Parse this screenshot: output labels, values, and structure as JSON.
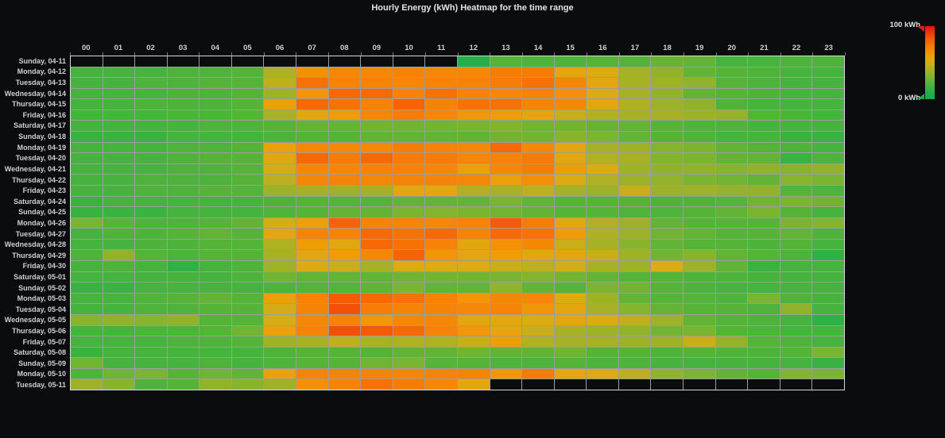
{
  "panel": {
    "background": "#0b0c0e",
    "grid_line_color": "rgba(255,255,255,0.6)",
    "text_color": "#cfd0d2"
  },
  "legend": {
    "max_label": "100 kWh",
    "min_label": "0 kWh",
    "max_marker_color": "#ef1d10",
    "min_marker_color": "#1cab45"
  },
  "chart_data": {
    "type": "heatmap",
    "title": "Hourly Energy (kWh) Heatmap for the time range",
    "value_unit": "kWh",
    "scale_min": 0,
    "scale_max": 100,
    "legend_position": "top-right",
    "no_data_color": "#0b0c0e",
    "colorstops": [
      [
        0,
        "#16a94f"
      ],
      [
        12,
        "#2eb145"
      ],
      [
        22,
        "#55b438"
      ],
      [
        32,
        "#83b42e"
      ],
      [
        42,
        "#b0b023"
      ],
      [
        52,
        "#daac12"
      ],
      [
        60,
        "#f09c07"
      ],
      [
        70,
        "#f58306"
      ],
      [
        80,
        "#f56306"
      ],
      [
        90,
        "#f03c08"
      ],
      [
        100,
        "#e51410"
      ]
    ],
    "x_labels": [
      "00",
      "01",
      "02",
      "03",
      "04",
      "05",
      "06",
      "07",
      "08",
      "09",
      "10",
      "11",
      "12",
      "13",
      "14",
      "15",
      "16",
      "17",
      "18",
      "19",
      "20",
      "21",
      "22",
      "23"
    ],
    "y_labels": [
      "Sunday, 04-11",
      "Monday, 04-12",
      "Tuesday, 04-13",
      "Wednesday, 04-14",
      "Thursday, 04-15",
      "Friday, 04-16",
      "Saturday, 04-17",
      "Sunday, 04-18",
      "Monday, 04-19",
      "Tuesday, 04-20",
      "Wednesday, 04-21",
      "Thursday, 04-22",
      "Friday, 04-23",
      "Saturday, 04-24",
      "Sunday, 04-25",
      "Monday, 04-26",
      "Tuesday, 04-27",
      "Wednesday, 04-28",
      "Thursday, 04-29",
      "Friday, 04-30",
      "Saturday, 05-01",
      "Sunday, 05-02",
      "Monday, 05-03",
      "Tuesday, 05-04",
      "Wednesday, 05-05",
      "Thursday, 05-06",
      "Friday, 05-07",
      "Saturday, 05-08",
      "Sunday, 05-09",
      "Monday, 05-10",
      "Tuesday, 05-11"
    ],
    "values": [
      [
        null,
        null,
        null,
        null,
        null,
        null,
        null,
        null,
        null,
        null,
        null,
        null,
        8,
        22,
        20,
        20,
        22,
        22,
        26,
        25,
        18,
        18,
        20,
        20
      ],
      [
        18,
        18,
        18,
        20,
        20,
        22,
        42,
        65,
        68,
        68,
        70,
        68,
        68,
        72,
        72,
        55,
        52,
        40,
        35,
        25,
        22,
        20,
        18,
        18
      ],
      [
        18,
        18,
        20,
        20,
        22,
        22,
        45,
        75,
        70,
        70,
        68,
        70,
        70,
        72,
        75,
        68,
        55,
        40,
        38,
        35,
        22,
        20,
        18,
        18
      ],
      [
        18,
        18,
        18,
        20,
        20,
        22,
        38,
        62,
        78,
        78,
        70,
        75,
        70,
        68,
        70,
        65,
        52,
        40,
        35,
        25,
        22,
        20,
        18,
        18
      ],
      [
        18,
        18,
        20,
        20,
        20,
        22,
        58,
        78,
        75,
        70,
        80,
        70,
        75,
        75,
        70,
        68,
        55,
        42,
        38,
        35,
        20,
        18,
        18,
        18
      ],
      [
        18,
        18,
        18,
        20,
        20,
        22,
        40,
        55,
        60,
        68,
        72,
        68,
        62,
        60,
        55,
        48,
        42,
        40,
        40,
        38,
        36,
        22,
        20,
        18
      ],
      [
        18,
        18,
        18,
        18,
        20,
        20,
        22,
        25,
        25,
        28,
        28,
        28,
        30,
        32,
        28,
        28,
        26,
        25,
        22,
        20,
        20,
        18,
        18,
        18
      ],
      [
        15,
        15,
        15,
        18,
        18,
        18,
        20,
        22,
        22,
        25,
        25,
        25,
        25,
        28,
        28,
        33,
        30,
        25,
        22,
        20,
        18,
        18,
        15,
        15
      ],
      [
        18,
        18,
        18,
        20,
        20,
        22,
        58,
        68,
        68,
        68,
        72,
        70,
        68,
        78,
        68,
        55,
        40,
        38,
        32,
        30,
        25,
        22,
        20,
        18
      ],
      [
        18,
        18,
        18,
        20,
        22,
        22,
        55,
        78,
        72,
        78,
        72,
        72,
        68,
        70,
        72,
        55,
        42,
        40,
        32,
        30,
        25,
        25,
        15,
        20
      ],
      [
        18,
        18,
        18,
        20,
        20,
        22,
        50,
        68,
        68,
        70,
        70,
        68,
        58,
        68,
        72,
        60,
        52,
        38,
        35,
        35,
        33,
        35,
        33,
        35
      ],
      [
        18,
        18,
        20,
        20,
        20,
        22,
        45,
        68,
        70,
        68,
        70,
        70,
        68,
        58,
        65,
        52,
        42,
        38,
        35,
        30,
        28,
        25,
        33,
        30
      ],
      [
        18,
        18,
        20,
        20,
        22,
        22,
        38,
        40,
        38,
        40,
        55,
        55,
        42,
        40,
        45,
        40,
        38,
        48,
        38,
        38,
        36,
        35,
        22,
        20
      ],
      [
        15,
        18,
        18,
        18,
        18,
        18,
        20,
        22,
        22,
        22,
        25,
        25,
        25,
        30,
        25,
        22,
        22,
        22,
        20,
        20,
        22,
        28,
        30,
        28
      ],
      [
        15,
        15,
        15,
        18,
        18,
        18,
        20,
        22,
        25,
        25,
        30,
        32,
        30,
        28,
        25,
        22,
        22,
        20,
        20,
        22,
        25,
        30,
        22,
        18
      ],
      [
        30,
        22,
        20,
        20,
        22,
        25,
        50,
        58,
        80,
        70,
        70,
        68,
        70,
        82,
        72,
        55,
        42,
        38,
        25,
        22,
        22,
        22,
        30,
        33
      ],
      [
        18,
        20,
        20,
        22,
        25,
        22,
        55,
        70,
        70,
        78,
        75,
        78,
        70,
        78,
        75,
        60,
        42,
        38,
        28,
        25,
        22,
        22,
        25,
        20
      ],
      [
        18,
        18,
        20,
        20,
        22,
        22,
        42,
        60,
        55,
        78,
        75,
        70,
        55,
        65,
        68,
        48,
        40,
        33,
        25,
        22,
        22,
        20,
        22,
        18
      ],
      [
        20,
        35,
        22,
        20,
        22,
        22,
        40,
        55,
        60,
        68,
        80,
        62,
        55,
        60,
        55,
        55,
        48,
        38,
        28,
        33,
        25,
        22,
        20,
        12
      ],
      [
        18,
        20,
        18,
        12,
        18,
        20,
        38,
        52,
        48,
        40,
        52,
        52,
        52,
        48,
        45,
        50,
        40,
        38,
        52,
        38,
        25,
        15,
        18,
        18
      ],
      [
        18,
        18,
        18,
        18,
        18,
        20,
        28,
        25,
        25,
        25,
        28,
        28,
        28,
        30,
        32,
        28,
        25,
        22,
        22,
        20,
        20,
        18,
        18,
        18
      ],
      [
        15,
        15,
        18,
        18,
        18,
        18,
        20,
        22,
        22,
        25,
        30,
        25,
        25,
        35,
        25,
        22,
        30,
        28,
        22,
        20,
        18,
        18,
        18,
        18
      ],
      [
        18,
        18,
        20,
        22,
        25,
        22,
        58,
        70,
        82,
        78,
        75,
        70,
        62,
        68,
        68,
        52,
        38,
        25,
        22,
        22,
        20,
        30,
        20,
        18
      ],
      [
        18,
        18,
        20,
        20,
        22,
        22,
        50,
        70,
        85,
        72,
        70,
        70,
        68,
        70,
        62,
        55,
        40,
        32,
        25,
        22,
        22,
        20,
        35,
        18
      ],
      [
        33,
        35,
        33,
        35,
        22,
        22,
        50,
        68,
        70,
        62,
        68,
        68,
        55,
        55,
        52,
        55,
        52,
        45,
        38,
        25,
        22,
        20,
        18,
        12
      ],
      [
        18,
        18,
        20,
        20,
        22,
        28,
        58,
        70,
        85,
        82,
        78,
        70,
        62,
        55,
        48,
        40,
        38,
        35,
        28,
        30,
        22,
        20,
        18,
        18
      ],
      [
        18,
        18,
        18,
        20,
        20,
        22,
        38,
        40,
        45,
        40,
        42,
        42,
        48,
        58,
        42,
        40,
        40,
        38,
        38,
        48,
        36,
        22,
        20,
        18
      ],
      [
        15,
        18,
        18,
        18,
        18,
        18,
        20,
        22,
        22,
        22,
        25,
        25,
        28,
        25,
        25,
        28,
        22,
        22,
        20,
        22,
        20,
        20,
        22,
        30
      ],
      [
        28,
        18,
        18,
        18,
        20,
        18,
        20,
        22,
        22,
        28,
        30,
        22,
        22,
        20,
        20,
        22,
        20,
        20,
        18,
        18,
        18,
        18,
        18,
        15
      ],
      [
        20,
        28,
        30,
        22,
        28,
        25,
        58,
        70,
        70,
        70,
        68,
        70,
        70,
        62,
        72,
        55,
        52,
        45,
        35,
        30,
        25,
        22,
        32,
        30
      ],
      [
        38,
        33,
        20,
        22,
        35,
        33,
        38,
        65,
        70,
        75,
        72,
        68,
        55,
        null,
        null,
        null,
        null,
        null,
        null,
        null,
        null,
        null,
        null,
        null
      ]
    ]
  }
}
